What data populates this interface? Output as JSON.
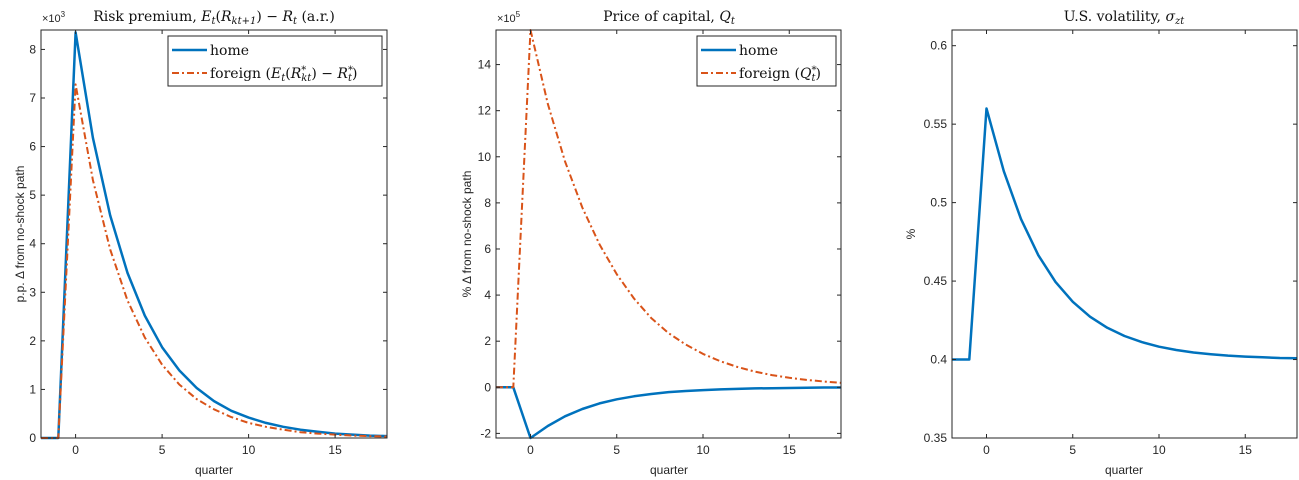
{
  "chart_data": [
    {
      "type": "line",
      "title": "Risk premium, E_t(R_{kt+1}) − R_t (a.r.)",
      "title_text": "Risk premium, ",
      "title_math": "E",
      "title_after": "(a.r.)",
      "ylabel": "p.p. Δ from no-shock path",
      "xlabel": "quarter",
      "exponent_label": "×10",
      "exponent_power": "3",
      "xlim": [
        -2,
        18
      ],
      "ylim": [
        0,
        8.4
      ],
      "xticks": [
        0,
        5,
        10,
        15
      ],
      "yticks": [
        0,
        1,
        2,
        3,
        4,
        5,
        6,
        7,
        8
      ],
      "legend_position": "top-right",
      "x": [
        -2,
        -1,
        0,
        1,
        2,
        3,
        4,
        5,
        6,
        7,
        8,
        9,
        10,
        11,
        12,
        13,
        14,
        15,
        16,
        17,
        18
      ],
      "series": [
        {
          "name": "home",
          "color": "#0072BD",
          "style": "solid",
          "values": [
            0,
            0,
            8.35,
            6.18,
            4.58,
            3.4,
            2.52,
            1.87,
            1.39,
            1.03,
            0.76,
            0.56,
            0.42,
            0.31,
            0.23,
            0.17,
            0.13,
            0.09,
            0.07,
            0.05,
            0.04
          ]
        },
        {
          "name": "foreign (E_t(R*_kt) − R*_t)",
          "color": "#D95319",
          "style": "dashdot",
          "values": [
            0,
            0,
            7.28,
            5.31,
            3.88,
            2.83,
            2.07,
            1.51,
            1.1,
            0.8,
            0.59,
            0.43,
            0.31,
            0.23,
            0.17,
            0.12,
            0.09,
            0.07,
            0.05,
            0.04,
            0.03
          ]
        }
      ]
    },
    {
      "type": "line",
      "title": "Price of capital, Q_t",
      "ylabel": "% Δ from no-shock path",
      "xlabel": "quarter",
      "exponent_label": "×10",
      "exponent_power": "5",
      "xlim": [
        -2,
        18
      ],
      "ylim": [
        -2.2,
        15.5
      ],
      "xticks": [
        0,
        5,
        10,
        15
      ],
      "yticks": [
        -2,
        0,
        2,
        4,
        6,
        8,
        10,
        12,
        14
      ],
      "legend_position": "top-right",
      "x": [
        -2,
        -1,
        0,
        1,
        2,
        3,
        4,
        5,
        6,
        7,
        8,
        9,
        10,
        11,
        12,
        13,
        14,
        15,
        16,
        17,
        18
      ],
      "series": [
        {
          "name": "home",
          "color": "#0072BD",
          "style": "solid",
          "values": [
            0,
            0,
            -2.2,
            -1.68,
            -1.26,
            -0.94,
            -0.7,
            -0.52,
            -0.39,
            -0.29,
            -0.21,
            -0.16,
            -0.12,
            -0.09,
            -0.07,
            -0.05,
            -0.04,
            -0.03,
            -0.02,
            -0.01,
            -0.01
          ]
        },
        {
          "name": "foreign (Q*_t)",
          "color": "#D95319",
          "style": "dashdot",
          "values": [
            0,
            0,
            15.5,
            12.3,
            9.8,
            7.8,
            6.2,
            4.9,
            3.85,
            3.0,
            2.35,
            1.85,
            1.45,
            1.13,
            0.88,
            0.68,
            0.53,
            0.41,
            0.32,
            0.25,
            0.19
          ]
        }
      ]
    },
    {
      "type": "line",
      "title": "U.S. volatility, σ_zt",
      "ylabel": "%",
      "xlabel": "quarter",
      "xlim": [
        -2,
        18
      ],
      "ylim": [
        0.35,
        0.61
      ],
      "xticks": [
        0,
        5,
        10,
        15
      ],
      "yticks": [
        0.35,
        0.4,
        0.45,
        0.5,
        0.55,
        0.6
      ],
      "ytick_labels": [
        "0.35",
        "0.4",
        "0.45",
        "0.5",
        "0.55",
        "0.6"
      ],
      "x": [
        -2,
        -1,
        0,
        1,
        2,
        3,
        4,
        5,
        6,
        7,
        8,
        9,
        10,
        11,
        12,
        13,
        14,
        15,
        16,
        17,
        18
      ],
      "series": [
        {
          "name": "",
          "color": "#0072BD",
          "style": "solid",
          "values": [
            0.4,
            0.4,
            0.56,
            0.52,
            0.4895,
            0.4665,
            0.4495,
            0.4368,
            0.4273,
            0.4202,
            0.415,
            0.4111,
            0.4082,
            0.4061,
            0.4045,
            0.4034,
            0.4025,
            0.4019,
            0.4014,
            0.401,
            0.4008
          ]
        }
      ]
    }
  ]
}
